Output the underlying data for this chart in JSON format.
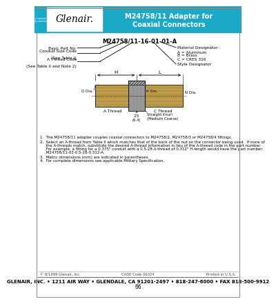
{
  "title_line1": "M24758/11 Adapter for",
  "title_line2": "Coaxial Connectors",
  "header_bg": "#1aaac8",
  "header_text_color": "#ffffff",
  "part_number_label": "M24758/11-16-01-01-A",
  "basic_part_no": "Basic Part No.",
  "conduit_size_line1": "Conduit Size Code",
  "conduit_size_line2": "(See Table I)",
  "a_thread_line1": "A Thread Code",
  "a_thread_line2": "(See Table II and Note 2)",
  "material_desig": "Material Designator:",
  "mat_a": "A = Aluminum",
  "mat_b": "B = Brass",
  "mat_c": "C = CRES 316",
  "style_desig": "Style Designator",
  "note1": "1.  The M24758/11 adapter couples coaxial connectors to M24758/2, M24758/3 or M24758/4 fittings.",
  "note2a": "2.  Select an A-thread from Table II which matches that of the back of the nut on the connector being used.  If none of",
  "note2b": "     the A-threads match, substitute the desired A-thread information in lieu of the A-thread code in the part number.",
  "note2c": "     For example, a fitting for a 0.375\" conduit with a 0.5-28 A-thread of 0.312\" H-length would have the part number:",
  "note2d": "     M24758/11-03-0.5-28-0.312-A.",
  "note3": "3.  Metric dimensions (mm) are indicated in parentheses.",
  "note4": "4.  For complete dimensions see applicable Military Specification.",
  "footer_left": "© 8/1999 Glenair, Inc.",
  "footer_center": "CAGE Code 06324",
  "footer_right": "Printed in U.S.A.",
  "footer_address": "GLENAIR, INC. • 1211 AIR WAY • GLENDALE, CA 91201-2497 • 818-247-6000 • FAX 818-500-9912",
  "footer_page": "66",
  "body_bg": "#ffffff",
  "teal": "#1aaac8",
  "connector_gold": "#c8a850",
  "knurl_gray": "#999999",
  "thread_gray": "#bbbbbb"
}
